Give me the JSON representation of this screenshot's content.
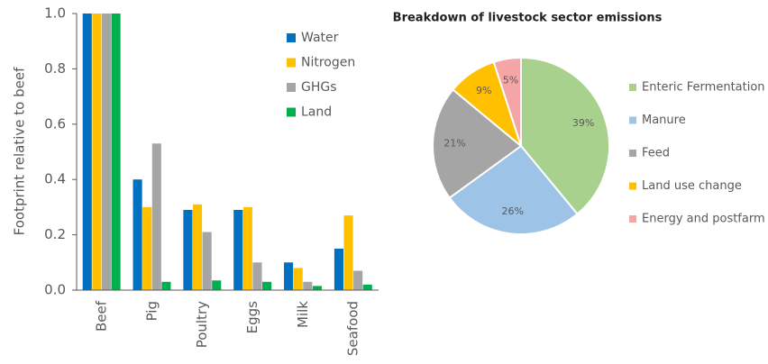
{
  "chart_data": [
    {
      "type": "bar",
      "ylabel": "Footprint relative to beef",
      "categories": [
        "Beef",
        "Pig",
        "Poultry",
        "Eggs",
        "Milk",
        "Seafood"
      ],
      "series": [
        {
          "name": "Water",
          "color": "#0070c0",
          "values": [
            1,
            0.4,
            0.29,
            0.29,
            0.1,
            0.15
          ]
        },
        {
          "name": "Nitrogen",
          "color": "#ffc000",
          "values": [
            1,
            0.3,
            0.31,
            0.3,
            0.08,
            0.27
          ]
        },
        {
          "name": "GHGs",
          "color": "#a5a5a5",
          "values": [
            1,
            0.53,
            0.21,
            0.1,
            0.03,
            0.07
          ]
        },
        {
          "name": "Land",
          "color": "#00b050",
          "values": [
            1,
            0.03,
            0.035,
            0.03,
            0.015,
            0.02
          ]
        }
      ],
      "ylim": [
        0,
        1
      ],
      "yticks": [
        {
          "value": 0,
          "label": "0.0"
        },
        0.2,
        0.4,
        0.6,
        0.8,
        {
          "value": 1,
          "label": "1.0"
        }
      ],
      "legend": "upper right"
    },
    {
      "type": "pie",
      "title": "Breakdown of livestock sector emissions",
      "categories": [
        "Enteric Fermentation",
        "Manure",
        "Feed",
        "Land use change",
        "Energy and postfarm"
      ],
      "values": [
        39,
        26,
        21,
        9,
        5
      ],
      "value_labels": [
        "39%",
        "26%",
        "21%",
        "9%",
        "5%"
      ],
      "colors": [
        "#a9d18e",
        "#9dc3e6",
        "#a5a5a5",
        "#ffc000",
        "#f4a6a6"
      ],
      "legend": "right"
    }
  ]
}
